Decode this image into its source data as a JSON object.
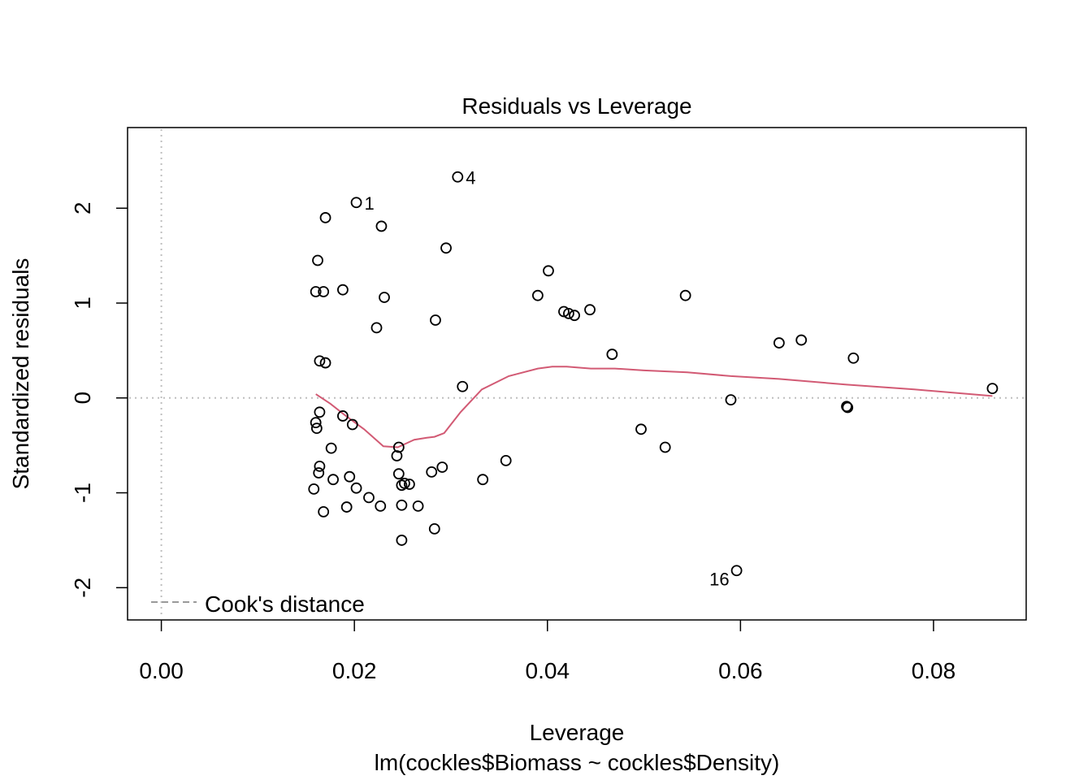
{
  "chart_data": {
    "type": "scatter",
    "title": "Residuals vs Leverage",
    "xlabel": "Leverage",
    "subtitle": "lm(cockles$Biomass ~ cockles$Density)",
    "ylabel": "Standardized residuals",
    "xlim": [
      -0.0035,
      0.0896
    ],
    "ylim": [
      -2.34,
      2.85
    ],
    "x_ticks": [
      0.0,
      0.02,
      0.04,
      0.06,
      0.08
    ],
    "x_tick_labels": [
      "0.00",
      "0.02",
      "0.04",
      "0.06",
      "0.08"
    ],
    "y_ticks": [
      -2,
      -1,
      0,
      1,
      2
    ],
    "y_tick_labels": [
      "-2",
      "-1",
      "0",
      "1",
      "2"
    ],
    "reference_lines": {
      "x": 0,
      "y": 0,
      "color": "#bebebe"
    },
    "legend": {
      "label": "Cook's distance",
      "position": "bottom-left",
      "color": "#9a9a9a"
    },
    "point_color": "#000000",
    "smooth_color": "#d25a74",
    "points": [
      {
        "x": 0.0202,
        "y": 2.06,
        "label": "1"
      },
      {
        "x": 0.0307,
        "y": 2.33,
        "label": "4"
      },
      {
        "x": 0.0596,
        "y": -1.82,
        "label": "16"
      },
      {
        "x": 0.017,
        "y": 1.9
      },
      {
        "x": 0.0228,
        "y": 1.81
      },
      {
        "x": 0.0295,
        "y": 1.58
      },
      {
        "x": 0.0162,
        "y": 1.45
      },
      {
        "x": 0.0401,
        "y": 1.34
      },
      {
        "x": 0.016,
        "y": 1.12
      },
      {
        "x": 0.0168,
        "y": 1.12
      },
      {
        "x": 0.0188,
        "y": 1.14
      },
      {
        "x": 0.0231,
        "y": 1.06
      },
      {
        "x": 0.039,
        "y": 1.08
      },
      {
        "x": 0.0543,
        "y": 1.08
      },
      {
        "x": 0.0417,
        "y": 0.91
      },
      {
        "x": 0.0422,
        "y": 0.89
      },
      {
        "x": 0.0428,
        "y": 0.87
      },
      {
        "x": 0.0444,
        "y": 0.93
      },
      {
        "x": 0.0284,
        "y": 0.82
      },
      {
        "x": 0.0223,
        "y": 0.74
      },
      {
        "x": 0.064,
        "y": 0.58
      },
      {
        "x": 0.0663,
        "y": 0.61
      },
      {
        "x": 0.0467,
        "y": 0.46
      },
      {
        "x": 0.0717,
        "y": 0.42
      },
      {
        "x": 0.0164,
        "y": 0.39
      },
      {
        "x": 0.017,
        "y": 0.37
      },
      {
        "x": 0.0312,
        "y": 0.12
      },
      {
        "x": 0.0861,
        "y": 0.1
      },
      {
        "x": 0.059,
        "y": -0.02
      },
      {
        "x": 0.071,
        "y": -0.09
      },
      {
        "x": 0.0711,
        "y": -0.1
      },
      {
        "x": 0.0164,
        "y": -0.15
      },
      {
        "x": 0.016,
        "y": -0.26
      },
      {
        "x": 0.0161,
        "y": -0.32
      },
      {
        "x": 0.0188,
        "y": -0.19
      },
      {
        "x": 0.0198,
        "y": -0.28
      },
      {
        "x": 0.0497,
        "y": -0.33
      },
      {
        "x": 0.0522,
        "y": -0.52
      },
      {
        "x": 0.0176,
        "y": -0.53
      },
      {
        "x": 0.0246,
        "y": -0.52
      },
      {
        "x": 0.0244,
        "y": -0.61
      },
      {
        "x": 0.0357,
        "y": -0.66
      },
      {
        "x": 0.0164,
        "y": -0.72
      },
      {
        "x": 0.0163,
        "y": -0.79
      },
      {
        "x": 0.0246,
        "y": -0.8
      },
      {
        "x": 0.028,
        "y": -0.78
      },
      {
        "x": 0.0291,
        "y": -0.73
      },
      {
        "x": 0.0195,
        "y": -0.83
      },
      {
        "x": 0.0178,
        "y": -0.86
      },
      {
        "x": 0.0333,
        "y": -0.86
      },
      {
        "x": 0.0158,
        "y": -0.96
      },
      {
        "x": 0.0202,
        "y": -0.95
      },
      {
        "x": 0.0249,
        "y": -0.92
      },
      {
        "x": 0.0252,
        "y": -0.9
      },
      {
        "x": 0.0257,
        "y": -0.91
      },
      {
        "x": 0.0215,
        "y": -1.05
      },
      {
        "x": 0.0192,
        "y": -1.15
      },
      {
        "x": 0.0227,
        "y": -1.14
      },
      {
        "x": 0.0249,
        "y": -1.13
      },
      {
        "x": 0.0266,
        "y": -1.14
      },
      {
        "x": 0.0168,
        "y": -1.2
      },
      {
        "x": 0.0283,
        "y": -1.38
      },
      {
        "x": 0.0249,
        "y": -1.5
      }
    ],
    "smooth_line": [
      {
        "x": 0.016,
        "y": 0.04
      },
      {
        "x": 0.0175,
        "y": -0.06
      },
      {
        "x": 0.019,
        "y": -0.18
      },
      {
        "x": 0.021,
        "y": -0.33
      },
      {
        "x": 0.023,
        "y": -0.51
      },
      {
        "x": 0.0245,
        "y": -0.52
      },
      {
        "x": 0.0262,
        "y": -0.44
      },
      {
        "x": 0.0275,
        "y": -0.42
      },
      {
        "x": 0.0283,
        "y": -0.41
      },
      {
        "x": 0.0293,
        "y": -0.37
      },
      {
        "x": 0.031,
        "y": -0.15
      },
      {
        "x": 0.0332,
        "y": 0.09
      },
      {
        "x": 0.036,
        "y": 0.23
      },
      {
        "x": 0.039,
        "y": 0.31
      },
      {
        "x": 0.0405,
        "y": 0.33
      },
      {
        "x": 0.042,
        "y": 0.33
      },
      {
        "x": 0.0445,
        "y": 0.31
      },
      {
        "x": 0.047,
        "y": 0.31
      },
      {
        "x": 0.05,
        "y": 0.29
      },
      {
        "x": 0.0545,
        "y": 0.27
      },
      {
        "x": 0.059,
        "y": 0.23
      },
      {
        "x": 0.064,
        "y": 0.2
      },
      {
        "x": 0.071,
        "y": 0.14
      },
      {
        "x": 0.078,
        "y": 0.09
      },
      {
        "x": 0.0861,
        "y": 0.02
      }
    ]
  }
}
